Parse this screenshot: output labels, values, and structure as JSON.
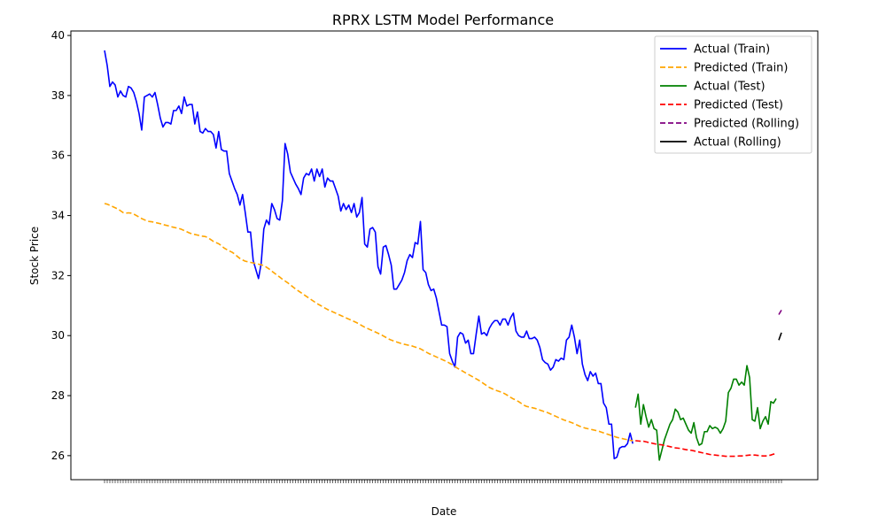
{
  "chart_data": {
    "type": "line",
    "title": "RPRX LSTM Model Performance",
    "xlabel": "Date",
    "ylabel": "Stock Price",
    "ylim": [
      25.2,
      40.15
    ],
    "yticks": [
      26,
      28,
      30,
      32,
      34,
      36,
      38,
      40
    ],
    "grid": false,
    "legend_position": "top-right",
    "colors": {
      "actual_train": "#0000ff",
      "predicted_train": "#ffa500",
      "actual_test": "#008000",
      "predicted_test": "#ff0000",
      "predicted_rolling": "#800080",
      "actual_rolling": "#000000"
    },
    "series": [
      {
        "name": "Actual (Train)",
        "key": "actual_train",
        "style": "solid",
        "x_start": 0,
        "values": [
          39.5,
          39.0,
          38.3,
          38.45,
          38.35,
          37.95,
          38.15,
          38.0,
          37.95,
          38.3,
          38.25,
          38.1,
          37.8,
          37.4,
          36.85,
          37.95,
          38.0,
          38.05,
          37.95,
          38.1,
          37.7,
          37.25,
          36.95,
          37.1,
          37.1,
          37.05,
          37.5,
          37.5,
          37.65,
          37.4,
          37.95,
          37.65,
          37.7,
          37.7,
          37.05,
          37.45,
          36.8,
          36.75,
          36.9,
          36.8,
          36.8,
          36.7,
          36.25,
          36.8,
          36.2,
          36.15,
          36.15,
          35.4,
          35.15,
          34.9,
          34.7,
          34.35,
          34.7,
          34.1,
          33.45,
          33.45,
          32.5,
          32.2,
          31.9,
          32.4,
          33.55,
          33.85,
          33.7,
          34.4,
          34.2,
          33.9,
          33.85,
          34.5,
          36.4,
          36.05,
          35.45,
          35.25,
          35.05,
          34.9,
          34.7,
          35.25,
          35.4,
          35.35,
          35.55,
          35.15,
          35.55,
          35.3,
          35.55,
          34.95,
          35.25,
          35.15,
          35.15,
          34.9,
          34.65,
          34.15,
          34.4,
          34.2,
          34.35,
          34.1,
          34.4,
          33.95,
          34.1,
          34.6,
          33.05,
          32.95,
          33.55,
          33.6,
          33.45,
          32.3,
          32.05,
          32.95,
          33.0,
          32.7,
          32.35,
          31.55,
          31.55,
          31.7,
          31.85,
          32.1,
          32.5,
          32.7,
          32.6,
          33.1,
          33.05,
          33.8,
          32.2,
          32.1,
          31.7,
          31.5,
          31.55,
          31.25,
          30.8,
          30.35,
          30.35,
          30.3,
          29.4,
          29.15,
          28.95,
          29.95,
          30.1,
          30.05,
          29.75,
          29.85,
          29.4,
          29.4,
          30.05,
          30.65,
          30.05,
          30.1,
          30.0,
          30.25,
          30.4,
          30.5,
          30.5,
          30.35,
          30.55,
          30.55,
          30.35,
          30.6,
          30.75,
          30.15,
          30.0,
          29.95,
          29.95,
          30.15,
          29.9,
          29.9,
          29.95,
          29.85,
          29.6,
          29.2,
          29.1,
          29.05,
          28.85,
          28.95,
          29.2,
          29.15,
          29.25,
          29.2,
          29.85,
          29.95,
          30.35,
          29.95,
          29.4,
          29.85,
          29.05,
          28.7,
          28.5,
          28.8,
          28.65,
          28.75,
          28.4,
          28.4,
          27.75,
          27.6,
          27.05,
          27.05,
          25.9,
          25.95,
          26.25,
          26.3,
          26.3,
          26.4,
          26.75,
          26.4
        ]
      },
      {
        "name": "Predicted (Train)",
        "key": "predicted_train",
        "style": "dashed",
        "x_start": 0,
        "values": [
          34.4,
          34.38,
          34.34,
          34.3,
          34.26,
          34.22,
          34.16,
          34.1,
          34.08,
          34.09,
          34.08,
          34.05,
          34.0,
          33.95,
          33.9,
          33.86,
          33.82,
          33.8,
          33.79,
          33.77,
          33.75,
          33.73,
          33.7,
          33.68,
          33.66,
          33.63,
          33.61,
          33.59,
          33.57,
          33.54,
          33.5,
          33.46,
          33.42,
          33.39,
          33.37,
          33.35,
          33.33,
          33.31,
          33.3,
          33.26,
          33.2,
          33.14,
          33.1,
          33.06,
          33.0,
          32.92,
          32.87,
          32.82,
          32.78,
          32.72,
          32.64,
          32.57,
          32.52,
          32.48,
          32.46,
          32.44,
          32.42,
          32.4,
          32.38,
          32.36,
          32.33,
          32.28,
          32.22,
          32.15,
          32.08,
          32.01,
          31.95,
          31.88,
          31.82,
          31.76,
          31.69,
          31.62,
          31.55,
          31.49,
          31.43,
          31.37,
          31.31,
          31.25,
          31.19,
          31.13,
          31.07,
          31.02,
          30.97,
          30.92,
          30.87,
          30.83,
          30.79,
          30.75,
          30.71,
          30.67,
          30.63,
          30.59,
          30.55,
          30.51,
          30.47,
          30.43,
          30.38,
          30.33,
          30.28,
          30.24,
          30.2,
          30.16,
          30.12,
          30.08,
          30.04,
          29.99,
          29.94,
          29.89,
          29.85,
          29.82,
          29.79,
          29.76,
          29.73,
          29.71,
          29.69,
          29.67,
          29.65,
          29.62,
          29.59,
          29.56,
          29.51,
          29.46,
          29.41,
          29.37,
          29.33,
          29.29,
          29.25,
          29.21,
          29.17,
          29.13,
          29.08,
          29.03,
          28.97,
          28.91,
          28.86,
          28.81,
          28.76,
          28.71,
          28.66,
          28.61,
          28.56,
          28.51,
          28.45,
          28.39,
          28.33,
          28.27,
          28.23,
          28.19,
          28.16,
          28.13,
          28.1,
          28.05,
          28.0,
          27.94,
          27.89,
          27.85,
          27.8,
          27.74,
          27.68,
          27.64,
          27.62,
          27.6,
          27.58,
          27.55,
          27.52,
          27.49,
          27.46,
          27.43,
          27.39,
          27.35,
          27.31,
          27.27,
          27.23,
          27.19,
          27.16,
          27.13,
          27.1,
          27.06,
          27.02,
          26.98,
          26.95,
          26.92,
          26.9,
          26.88,
          26.86,
          26.84,
          26.82,
          26.79,
          26.76,
          26.73,
          26.7,
          26.67,
          26.64,
          26.61,
          26.59,
          26.57,
          26.55,
          26.53,
          26.51,
          26.5
        ]
      },
      {
        "name": "Actual (Test)",
        "key": "actual_test",
        "style": "solid",
        "x_start": 200,
        "values": [
          27.6,
          28.05,
          27.05,
          27.7,
          27.3,
          26.95,
          27.2,
          26.9,
          26.85,
          25.85,
          26.2,
          26.55,
          26.8,
          27.05,
          27.2,
          27.55,
          27.45,
          27.2,
          27.25,
          27.05,
          26.85,
          26.75,
          27.1,
          26.6,
          26.35,
          26.4,
          26.8,
          26.8,
          27.0,
          26.9,
          26.95,
          26.9,
          26.75,
          26.9,
          27.15,
          28.1,
          28.25,
          28.55,
          28.55,
          28.35,
          28.45,
          28.35,
          29.0,
          28.6,
          27.2,
          27.15,
          27.6,
          26.9,
          27.15,
          27.3,
          27.05,
          27.8,
          27.75,
          27.9
        ]
      },
      {
        "name": "Predicted (Test)",
        "key": "predicted_test",
        "style": "dashed",
        "x_start": 200,
        "values": [
          26.5,
          26.49,
          26.48,
          26.48,
          26.46,
          26.44,
          26.42,
          26.4,
          26.38,
          26.37,
          26.36,
          26.34,
          26.32,
          26.3,
          26.28,
          26.26,
          26.25,
          26.24,
          26.22,
          26.2,
          26.19,
          26.18,
          26.16,
          26.14,
          26.12,
          26.1,
          26.08,
          26.06,
          26.04,
          26.03,
          26.02,
          26.01,
          26.0,
          25.99,
          25.98,
          25.98,
          25.98,
          25.98,
          25.98,
          25.99,
          25.99,
          26.0,
          26.01,
          26.02,
          26.02,
          26.02,
          26.01,
          26.0,
          25.99,
          25.99,
          26.0,
          26.02,
          26.05,
          26.07
        ]
      },
      {
        "name": "Predicted (Rolling)",
        "key": "predicted_rolling",
        "style": "dashed",
        "x_start": 254,
        "values": [
          30.7,
          30.85
        ]
      },
      {
        "name": "Actual (Rolling)",
        "key": "actual_rolling",
        "style": "solid",
        "x_start": 254,
        "values": [
          29.85,
          30.1
        ]
      }
    ]
  }
}
